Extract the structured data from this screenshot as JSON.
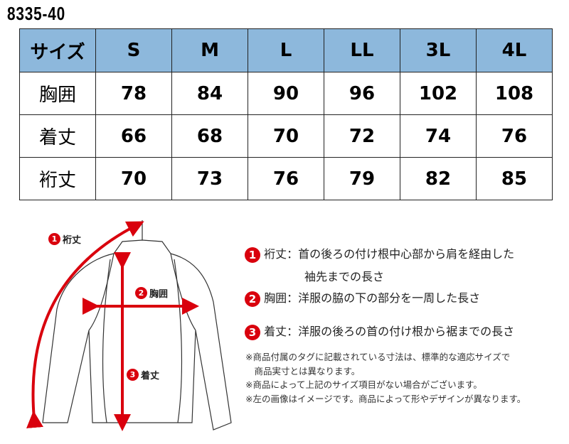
{
  "title": "8335-40",
  "table": {
    "header": [
      "サイズ",
      "S",
      "M",
      "L",
      "LL",
      "3L",
      "4L"
    ],
    "rows": [
      [
        "胸囲",
        "78",
        "84",
        "90",
        "96",
        "102",
        "108"
      ],
      [
        "着丈",
        "66",
        "68",
        "70",
        "72",
        "74",
        "76"
      ],
      [
        "裄丈",
        "70",
        "73",
        "76",
        "79",
        "82",
        "85"
      ]
    ]
  },
  "diagram": {
    "labels": [
      {
        "num": "1",
        "text": "裄丈"
      },
      {
        "num": "2",
        "text": "胸囲"
      },
      {
        "num": "3",
        "text": "着丈"
      }
    ],
    "accent": "#d9000d"
  },
  "descriptions": [
    {
      "num": "1",
      "term": "裄丈",
      "sep": "：",
      "line1": "首の後ろの付け根中心部から肩を経由した",
      "line2": "袖先までの長さ"
    },
    {
      "num": "2",
      "term": "胸囲",
      "sep": "：",
      "line1": "洋服の脇の下の部分を一周した長さ"
    },
    {
      "num": "3",
      "term": "着丈",
      "sep": "：",
      "line1": "洋服の後ろの首の付け根から裾までの長さ"
    }
  ],
  "notes": [
    "※商品付属のタグに記載されている寸法は、標準的な適応サイズで",
    "　商品実寸とは異なります。",
    "※商品によって上記のサイズ項目がない場合がございます。",
    "※左の画像はイメージです。商品によって形やデザインが異なります。"
  ]
}
